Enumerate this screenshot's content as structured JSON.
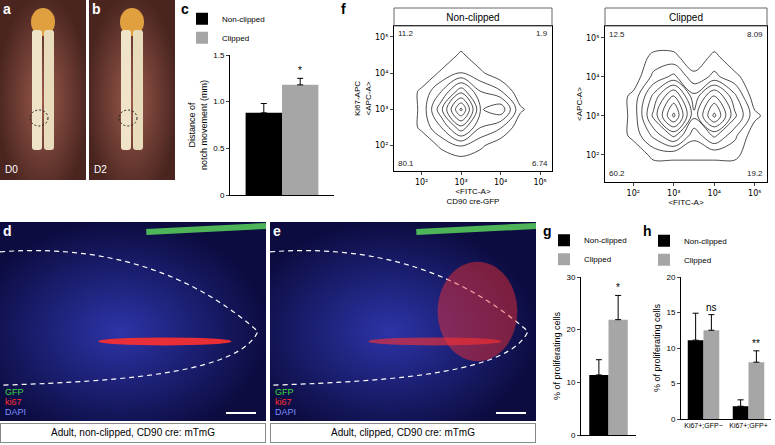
{
  "panels": [
    {
      "label": "a",
      "type": "photo",
      "text": "D0"
    },
    {
      "label": "b",
      "type": "photo",
      "text": "D2"
    },
    {
      "label": "d",
      "type": "micrograph",
      "channels": [
        {
          "name": "GFP",
          "color": "#3ddc3d"
        },
        {
          "name": "ki67",
          "color": "#ff3030"
        },
        {
          "name": "DAPI",
          "color": "#7d8dff"
        }
      ],
      "caption": "Adult, non-clipped, CD90 cre: mTmG"
    },
    {
      "label": "e",
      "type": "micrograph",
      "channels": [
        {
          "name": "GFP",
          "color": "#3ddc3d"
        },
        {
          "name": "ki67",
          "color": "#ff3030"
        },
        {
          "name": "DAPI",
          "color": "#7d8dff"
        }
      ],
      "caption": "Adult, clipped, CD90 cre: mTmG"
    }
  ],
  "chart_data": [
    {
      "label": "c",
      "type": "bar",
      "categories": [
        null
      ],
      "series": [
        {
          "name": "Non-clipped",
          "color": "#000000",
          "values": [
            0.88
          ],
          "errors": [
            0.1
          ]
        },
        {
          "name": "Clipped",
          "color": "#a6a6a6",
          "values": [
            1.18
          ],
          "errors": [
            0.07
          ]
        }
      ],
      "ylabel": "Distance of\nnotch movement (mm)",
      "ylim": [
        0,
        1.5
      ],
      "yticks": [
        0,
        0.5,
        {
          "value": 1,
          "label": "1.0"
        },
        1.5
      ],
      "tick_labels": "y",
      "grid": false,
      "legend": "top left",
      "annotations": [
        {
          "text": "*",
          "series": "Clipped",
          "index": 0
        }
      ]
    },
    {
      "label": "f",
      "type": "contour",
      "title": "Non-clipped",
      "x": [
        32,
        100,
        316,
        1000,
        3162,
        10000,
        31623,
        100000,
        316228
      ],
      "y": [
        32,
        100,
        316,
        1000,
        3162,
        10000,
        31623,
        100000,
        316228
      ],
      "z": [
        [
          0,
          0,
          0,
          0,
          0,
          0,
          0,
          0,
          0
        ],
        [
          0,
          0,
          1,
          2,
          1,
          0,
          0,
          0,
          0
        ],
        [
          0,
          1,
          3,
          6,
          3,
          2,
          0,
          0,
          0
        ],
        [
          0,
          1,
          5,
          10,
          4,
          5,
          1,
          0,
          0
        ],
        [
          0,
          1,
          3,
          6,
          3,
          2,
          0,
          0,
          0
        ],
        [
          0,
          0,
          1,
          2,
          1,
          0,
          0,
          0,
          0
        ],
        [
          0,
          0,
          0,
          1,
          0,
          0,
          0,
          0,
          0
        ],
        [
          0,
          0,
          0,
          0,
          0,
          0,
          0,
          0,
          0
        ],
        [
          0,
          0,
          0,
          0,
          0,
          0,
          0,
          0,
          0
        ]
      ],
      "xlim": [
        20,
        200000
      ],
      "ylim": [
        20,
        200000
      ],
      "log": true,
      "grid": false,
      "xticks": [
        {
          "value": 100,
          "label": "10²"
        },
        {
          "value": 1000,
          "label": "10³"
        },
        {
          "value": 10000,
          "label": "10⁴"
        },
        {
          "value": 100000,
          "label": "10⁵"
        }
      ],
      "yticks": [
        {
          "value": 100,
          "label": "10²"
        },
        {
          "value": 1000,
          "label": "10³"
        },
        {
          "value": 10000,
          "label": "10⁴"
        },
        {
          "value": 100000,
          "label": "10⁵"
        }
      ],
      "xlabel": "<FITC-A>",
      "xlabel_outer": "CD90 cre-GFP",
      "ylabel": "<APC-A>",
      "ylabel_outer": "Ki67-APC",
      "gate": {
        "x": 6000,
        "y": 2500
      },
      "quadrants": {
        "upper_left": 11.2,
        "upper_right": 1.9,
        "lower_left": 80.1,
        "lower_right": 6.74
      }
    },
    {
      "type": "contour",
      "title": "Clipped",
      "x": [
        32,
        100,
        316,
        1000,
        3162,
        10000,
        31623,
        100000,
        316228
      ],
      "y": [
        32,
        100,
        316,
        1000,
        3162,
        10000,
        31623,
        100000,
        316228
      ],
      "z": [
        [
          0,
          0,
          0,
          0,
          0,
          0,
          0,
          0,
          0
        ],
        [
          0,
          0,
          1,
          1,
          1,
          1,
          1,
          0,
          0
        ],
        [
          0,
          1,
          3,
          5,
          2,
          4,
          2,
          0,
          0
        ],
        [
          0,
          1,
          5,
          9,
          4,
          8,
          4,
          1,
          0
        ],
        [
          0,
          1,
          4,
          7,
          3,
          6,
          3,
          0,
          0
        ],
        [
          0,
          0,
          2,
          3,
          1,
          2,
          1,
          0,
          0
        ],
        [
          0,
          0,
          1,
          1,
          0,
          1,
          0,
          0,
          0
        ],
        [
          0,
          0,
          0,
          0,
          0,
          0,
          0,
          0,
          0
        ],
        [
          0,
          0,
          0,
          0,
          0,
          0,
          0,
          0,
          0
        ]
      ],
      "xlim": [
        20,
        200000
      ],
      "ylim": [
        20,
        200000
      ],
      "log": true,
      "grid": false,
      "xticks": [
        {
          "value": 100,
          "label": "10²"
        },
        {
          "value": 1000,
          "label": "10³"
        },
        {
          "value": 10000,
          "label": "10⁴"
        },
        {
          "value": 100000,
          "label": "10⁵"
        }
      ],
      "yticks": [
        {
          "value": 100,
          "label": "10²"
        },
        {
          "value": 1000,
          "label": "10³"
        },
        {
          "value": 10000,
          "label": "10⁴"
        },
        {
          "value": 100000,
          "label": "10⁵"
        }
      ],
      "xlabel": "<FITC-A>",
      "ylabel": "<APC-A>",
      "gate": {
        "x": 6000,
        "y": 2500
      },
      "quadrants": {
        "upper_left": 12.5,
        "upper_right": 8.09,
        "lower_left": 60.2,
        "lower_right": 19.2
      }
    },
    {
      "label": "g",
      "type": "bar",
      "categories": [
        null
      ],
      "series": [
        {
          "name": "Non-clipped",
          "color": "#000000",
          "values": [
            11.4
          ],
          "errors": [
            2.9
          ]
        },
        {
          "name": "Clipped",
          "color": "#a6a6a6",
          "values": [
            21.9
          ],
          "errors": [
            4.6
          ]
        }
      ],
      "ylabel": "% of proliferating cells",
      "ylim": [
        0,
        30
      ],
      "yticks": [
        0,
        10,
        20,
        30
      ],
      "tick_labels": "y",
      "grid": false,
      "legend": "top left",
      "annotations": [
        {
          "text": "*",
          "series": "Clipped",
          "index": 0
        }
      ]
    },
    {
      "label": "h",
      "type": "bar",
      "categories": [
        "Ki67+;GFP−",
        "Ki67+;GFP+"
      ],
      "series": [
        {
          "name": "Non-clipped",
          "color": "#000000",
          "values": [
            11.1,
            1.8
          ],
          "errors": [
            3.8,
            0.9
          ]
        },
        {
          "name": "Clipped",
          "color": "#a6a6a6",
          "values": [
            12.5,
            8.0
          ],
          "errors": [
            2.2,
            1.6
          ]
        }
      ],
      "ylabel": "% of proliferating cells",
      "ylim": [
        0,
        20
      ],
      "yticks": [
        0,
        5,
        10,
        15,
        20
      ],
      "grid": false,
      "legend": "top left",
      "annotations": [
        {
          "text": "ns",
          "series": "Clipped",
          "index": 0
        },
        {
          "text": "**",
          "series": "Clipped",
          "index": 1
        }
      ]
    }
  ]
}
